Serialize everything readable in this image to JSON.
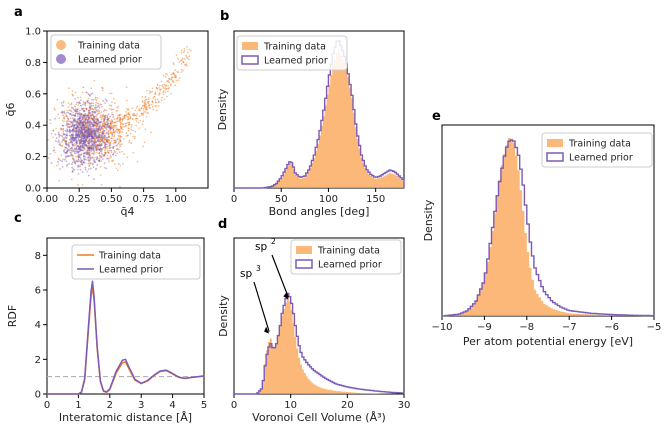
{
  "colors": {
    "training": "#f9a04c",
    "training_line": "#f47c20",
    "prior": "#7b5bb6",
    "grid_dash": "#aaaaaa"
  },
  "chart_data": [
    {
      "id": "a",
      "type": "scatter",
      "panel": "a",
      "xlabel": "q̄4",
      "ylabel": "q̄6",
      "xlim": [
        0.0,
        1.25
      ],
      "ylim": [
        0.0,
        1.0
      ],
      "xticks": [
        "0.00",
        "0.25",
        "0.50",
        "0.75",
        "1.00"
      ],
      "xtick_values": [
        0,
        0.25,
        0.5,
        0.75,
        1.0
      ],
      "yticks": [
        "0.0",
        "0.2",
        "0.4",
        "0.6",
        "0.8",
        "1.0"
      ],
      "ytick_values": [
        0,
        0.2,
        0.4,
        0.6,
        0.8,
        1.0
      ],
      "legend": [
        "Training data",
        "Learned prior"
      ],
      "legend_loc": "upper-left",
      "series": [
        {
          "name": "Training data",
          "center": [
            0.36,
            0.36
          ],
          "spread": [
            0.14,
            0.11
          ],
          "tail_to": [
            1.1,
            0.86
          ]
        },
        {
          "name": "Learned prior",
          "center": [
            0.3,
            0.34
          ],
          "spread": [
            0.1,
            0.09
          ]
        }
      ]
    },
    {
      "id": "b",
      "type": "histogram",
      "panel": "b",
      "xlabel": "Bond angles [deg]",
      "ylabel": "Density",
      "xlim": [
        0,
        180
      ],
      "xticks": [
        "0",
        "50",
        "100",
        "150"
      ],
      "xtick_values": [
        0,
        50,
        100,
        150
      ],
      "legend": [
        "Training data",
        "Learned prior"
      ],
      "legend_loc": "upper-left",
      "x": [
        0,
        10,
        20,
        30,
        40,
        45,
        50,
        55,
        58,
        60,
        62,
        65,
        70,
        75,
        80,
        85,
        90,
        95,
        100,
        105,
        108,
        110,
        112,
        115,
        118,
        120,
        125,
        130,
        135,
        140,
        145,
        150,
        155,
        160,
        165,
        170,
        175,
        180
      ],
      "series": [
        {
          "name": "Training data",
          "values": [
            0,
            0,
            0,
            0,
            0.01,
            0.03,
            0.06,
            0.12,
            0.16,
            0.17,
            0.15,
            0.09,
            0.06,
            0.07,
            0.12,
            0.2,
            0.32,
            0.48,
            0.66,
            0.82,
            0.88,
            0.93,
            0.9,
            0.86,
            0.82,
            0.78,
            0.6,
            0.36,
            0.2,
            0.12,
            0.08,
            0.06,
            0.07,
            0.08,
            0.1,
            0.09,
            0.07,
            0.04
          ]
        },
        {
          "name": "Learned prior",
          "values": [
            0,
            0,
            0,
            0,
            0.01,
            0.03,
            0.07,
            0.13,
            0.17,
            0.18,
            0.16,
            0.1,
            0.07,
            0.08,
            0.13,
            0.22,
            0.35,
            0.52,
            0.72,
            0.9,
            0.96,
            1.0,
            0.97,
            0.92,
            0.86,
            0.8,
            0.62,
            0.38,
            0.22,
            0.13,
            0.09,
            0.07,
            0.08,
            0.1,
            0.12,
            0.11,
            0.08,
            0.05
          ]
        }
      ]
    },
    {
      "id": "c",
      "type": "line",
      "panel": "c",
      "xlabel": "Interatomic distance [Å]",
      "ylabel": "RDF",
      "xlim": [
        0,
        5
      ],
      "ylim": [
        0,
        9
      ],
      "xticks": [
        "0",
        "1",
        "2",
        "3",
        "4",
        "5"
      ],
      "xtick_values": [
        0,
        1,
        2,
        3,
        4,
        5
      ],
      "yticks": [
        "0",
        "2",
        "4",
        "6",
        "8"
      ],
      "ytick_values": [
        0,
        2,
        4,
        6,
        8
      ],
      "hline": 1.0,
      "legend": [
        "Training data",
        "Learned prior"
      ],
      "legend_loc": "upper-right",
      "x": [
        0,
        1.0,
        1.1,
        1.2,
        1.3,
        1.4,
        1.45,
        1.5,
        1.6,
        1.7,
        1.8,
        1.9,
        2.0,
        2.2,
        2.4,
        2.5,
        2.6,
        2.8,
        3.0,
        3.2,
        3.4,
        3.6,
        3.8,
        4.0,
        4.2,
        4.4,
        4.6,
        4.8,
        5.0
      ],
      "series": [
        {
          "name": "Training data",
          "values": [
            0,
            0,
            0.1,
            0.8,
            3.2,
            5.6,
            6.2,
            5.4,
            2.6,
            0.7,
            0.15,
            0.1,
            0.25,
            1.2,
            1.8,
            1.85,
            1.5,
            0.8,
            0.6,
            0.75,
            1.05,
            1.3,
            1.35,
            1.15,
            0.95,
            0.9,
            0.95,
            1.0,
            1.05
          ]
        },
        {
          "name": "Learned prior",
          "values": [
            0,
            0,
            0.12,
            0.9,
            3.4,
            5.9,
            6.5,
            5.6,
            2.7,
            0.75,
            0.18,
            0.12,
            0.3,
            1.3,
            1.95,
            2.0,
            1.6,
            0.85,
            0.62,
            0.78,
            1.08,
            1.32,
            1.38,
            1.18,
            0.97,
            0.9,
            0.96,
            1.0,
            1.04
          ]
        }
      ]
    },
    {
      "id": "d",
      "type": "histogram",
      "panel": "d",
      "xlabel": "Voronoi Cell Volume (Å³)",
      "ylabel": "Density",
      "xlim": [
        0,
        30
      ],
      "xticks": [
        "0",
        "10",
        "20",
        "30"
      ],
      "xtick_values": [
        0,
        10,
        20,
        30
      ],
      "legend": [
        "Training data",
        "Learned prior"
      ],
      "legend_loc": "upper-right",
      "annotations": [
        {
          "label": "sp",
          "sup": "2",
          "x": 9.6,
          "y": 0.92
        },
        {
          "label": "sp",
          "sup": "3",
          "x": 6.2,
          "y": 0.58
        }
      ],
      "x": [
        0,
        4,
        5,
        5.5,
        6,
        6.5,
        7,
        7.5,
        8,
        8.5,
        9,
        9.5,
        10,
        10.5,
        11,
        11.5,
        12,
        13,
        14,
        15,
        16,
        18,
        20,
        22,
        25,
        28,
        30
      ],
      "series": [
        {
          "name": "Training data",
          "values": [
            0,
            0,
            0.05,
            0.3,
            0.5,
            0.55,
            0.45,
            0.5,
            0.62,
            0.78,
            0.88,
            0.96,
            0.9,
            0.7,
            0.5,
            0.36,
            0.26,
            0.16,
            0.1,
            0.07,
            0.05,
            0.03,
            0.02,
            0.01,
            0.005,
            0,
            0
          ]
        },
        {
          "name": "Learned prior",
          "values": [
            0,
            0,
            0.06,
            0.28,
            0.45,
            0.5,
            0.44,
            0.5,
            0.62,
            0.8,
            0.92,
            1.0,
            0.95,
            0.8,
            0.62,
            0.48,
            0.38,
            0.3,
            0.24,
            0.2,
            0.16,
            0.1,
            0.07,
            0.05,
            0.03,
            0.015,
            0.01
          ]
        }
      ]
    },
    {
      "id": "e",
      "type": "histogram",
      "panel": "e",
      "xlabel": "Per atom potential energy [eV]",
      "ylabel": "Density",
      "xlim": [
        -10,
        -5
      ],
      "xticks": [
        "−10",
        "−9",
        "−8",
        "−7",
        "−6",
        "−5"
      ],
      "xtick_values": [
        -10,
        -9,
        -8,
        -7,
        -6,
        -5
      ],
      "legend": [
        "Training data",
        "Learned prior"
      ],
      "legend_loc": "upper-right",
      "x": [
        -10,
        -9.6,
        -9.4,
        -9.2,
        -9.0,
        -8.9,
        -8.8,
        -8.7,
        -8.6,
        -8.5,
        -8.4,
        -8.3,
        -8.2,
        -8.1,
        -8.0,
        -7.9,
        -7.8,
        -7.6,
        -7.4,
        -7.2,
        -7.0,
        -6.5,
        -6.0,
        -5.5,
        -5.0
      ],
      "series": [
        {
          "name": "Training data",
          "values": [
            0,
            0.01,
            0.03,
            0.08,
            0.2,
            0.32,
            0.48,
            0.66,
            0.82,
            0.93,
            1.0,
            0.96,
            0.82,
            0.62,
            0.4,
            0.24,
            0.14,
            0.07,
            0.04,
            0.025,
            0.015,
            0.008,
            0.004,
            0.002,
            0
          ]
        },
        {
          "name": "Learned prior",
          "values": [
            0,
            0.01,
            0.03,
            0.08,
            0.2,
            0.34,
            0.5,
            0.66,
            0.8,
            0.92,
            0.98,
            0.97,
            0.9,
            0.76,
            0.56,
            0.38,
            0.26,
            0.14,
            0.08,
            0.05,
            0.03,
            0.015,
            0.008,
            0.004,
            0.002
          ]
        }
      ]
    }
  ]
}
